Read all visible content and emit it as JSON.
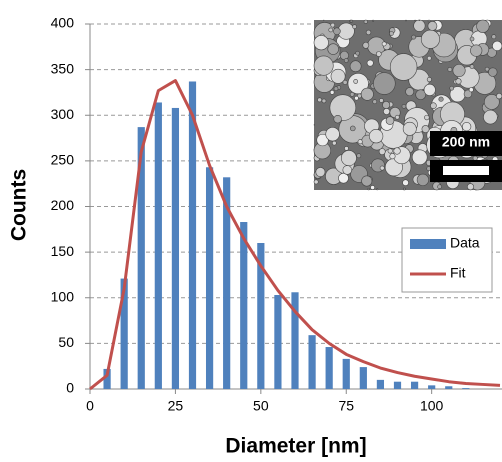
{
  "chart_data": {
    "type": "bar",
    "xlabel": "Diameter [nm]",
    "ylabel": "Counts",
    "xlim": [
      0,
      120
    ],
    "ylim": [
      0,
      400
    ],
    "xticks": [
      0,
      25,
      50,
      75,
      100
    ],
    "yticks": [
      0,
      50,
      100,
      150,
      200,
      250,
      300,
      350,
      400
    ],
    "grid": true,
    "legend": "right",
    "inset_label": "200 nm",
    "series": [
      {
        "name": "Data",
        "type": "bar",
        "color": "#4f81bd",
        "x": [
          5,
          10,
          15,
          20,
          25,
          30,
          35,
          40,
          45,
          50,
          55,
          60,
          65,
          70,
          75,
          80,
          85,
          90,
          95,
          100,
          105,
          110
        ],
        "values": [
          22,
          121,
          287,
          314,
          308,
          337,
          243,
          232,
          183,
          160,
          103,
          106,
          59,
          46,
          33,
          24,
          10,
          8,
          8,
          4,
          3,
          1
        ]
      },
      {
        "name": "Fit",
        "type": "line",
        "color": "#c0504d",
        "x": [
          0,
          5,
          10,
          15,
          20,
          25,
          30,
          35,
          40,
          45,
          50,
          55,
          60,
          65,
          70,
          75,
          80,
          85,
          90,
          95,
          100,
          105,
          110,
          115,
          120
        ],
        "values": [
          0,
          15,
          110,
          260,
          327,
          338,
          300,
          245,
          200,
          165,
          135,
          108,
          85,
          65,
          50,
          38,
          30,
          23,
          18,
          14,
          11,
          8,
          6,
          5,
          4
        ]
      }
    ]
  }
}
